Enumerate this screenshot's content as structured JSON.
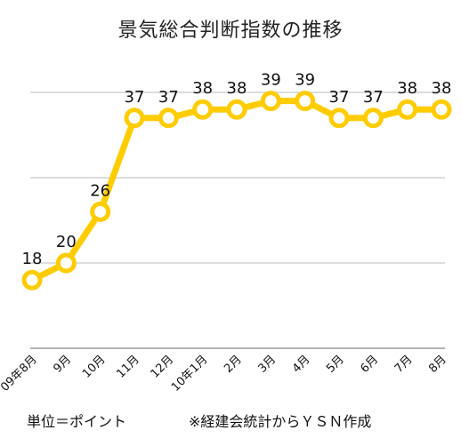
{
  "chart_data": {
    "type": "line",
    "title": "景気総合判断指数の推移",
    "categories": [
      "09年8月",
      "9月",
      "10月",
      "11月",
      "12月",
      "10年1月",
      "2月",
      "3月",
      "4月",
      "5月",
      "6月",
      "7月",
      "8月"
    ],
    "series": [
      {
        "values": [
          18,
          20,
          26,
          37,
          37,
          38,
          38,
          39,
          39,
          37,
          37,
          38,
          38
        ]
      }
    ],
    "data_labels": [
      "18",
      "20",
      "26",
      "37",
      "37",
      "38",
      "38",
      "39",
      "39",
      "37",
      "37",
      "38",
      "38"
    ],
    "ylim": [
      10,
      40
    ],
    "grid": true,
    "xlabel": "",
    "ylabel": "",
    "line_color": "#FFCC00",
    "grid_color": "#bbbbbb"
  },
  "footer": {
    "unit": "単位＝ポイント",
    "source": "※経建会統計からＹＳＮ作成"
  }
}
